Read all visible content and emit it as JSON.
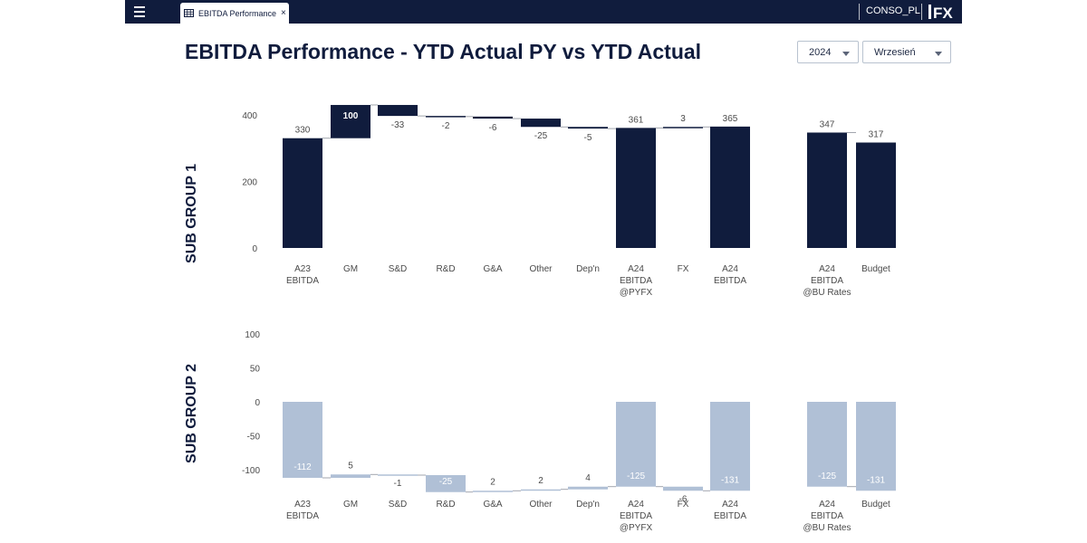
{
  "topbar": {
    "tab_label": "EBITDA Performance",
    "tab_close": "×",
    "entity": "CONSO_PL",
    "logo_text": "FX"
  },
  "page": {
    "title": "EBITDA Performance - YTD Actual PY vs YTD Actual"
  },
  "filters": {
    "year": "2024",
    "month": "Wrzesień"
  },
  "colors": {
    "navy": "#101c3d",
    "light": "#b0c0d6",
    "axis_text": "#4a4a4a"
  },
  "chart_data": [
    {
      "type": "bar",
      "subtype": "waterfall",
      "title": "SUB GROUP 1",
      "ylim": [
        0,
        400
      ],
      "yticks": [
        0,
        200,
        400
      ],
      "grid": false,
      "categories": [
        [
          "A23",
          "EBITDA"
        ],
        [
          "GM"
        ],
        [
          "S&D"
        ],
        [
          "R&D"
        ],
        [
          "G&A"
        ],
        [
          "Other"
        ],
        [
          "Dep'n"
        ],
        [
          "A24",
          "EBITDA",
          "@PYFX"
        ],
        [
          "FX"
        ],
        [
          "A24",
          "EBITDA"
        ],
        [
          "A24",
          "EBITDA",
          "@BU Rates"
        ],
        [
          "Budget"
        ]
      ],
      "bar_kinds": [
        "total",
        "delta",
        "delta",
        "delta",
        "delta",
        "delta",
        "delta",
        "total",
        "delta",
        "total",
        "total",
        "total"
      ],
      "values": [
        330,
        100,
        -33,
        -2,
        -6,
        -25,
        -5,
        361,
        3,
        365,
        347,
        317
      ],
      "labels": [
        "330",
        "100",
        "-33",
        "-2",
        "-6",
        "-25",
        "-5",
        "361",
        "3",
        "365",
        "347",
        "317"
      ]
    },
    {
      "type": "bar",
      "subtype": "waterfall",
      "title": "SUB GROUP 2",
      "ylim": [
        -131,
        100
      ],
      "yticks": [
        -100,
        -50,
        0,
        50,
        100
      ],
      "grid": false,
      "categories": [
        [
          "A23",
          "EBITDA"
        ],
        [
          "GM"
        ],
        [
          "S&D"
        ],
        [
          "R&D"
        ],
        [
          "G&A"
        ],
        [
          "Other"
        ],
        [
          "Dep'n"
        ],
        [
          "A24",
          "EBITDA",
          "@PYFX"
        ],
        [
          "FX"
        ],
        [
          "A24",
          "EBITDA"
        ],
        [
          "A24",
          "EBITDA",
          "@BU Rates"
        ],
        [
          "Budget"
        ]
      ],
      "bar_kinds": [
        "total",
        "delta",
        "delta",
        "delta",
        "delta",
        "delta",
        "delta",
        "total",
        "delta",
        "total",
        "total",
        "total"
      ],
      "values": [
        -112,
        5,
        -1,
        -25,
        2,
        2,
        4,
        -125,
        -6,
        -131,
        -125,
        -131
      ],
      "labels": [
        "-112",
        "5",
        "-1",
        "-25",
        "2",
        "2",
        "4",
        "-125",
        "-6",
        "-131",
        "-125",
        "-131"
      ]
    }
  ]
}
